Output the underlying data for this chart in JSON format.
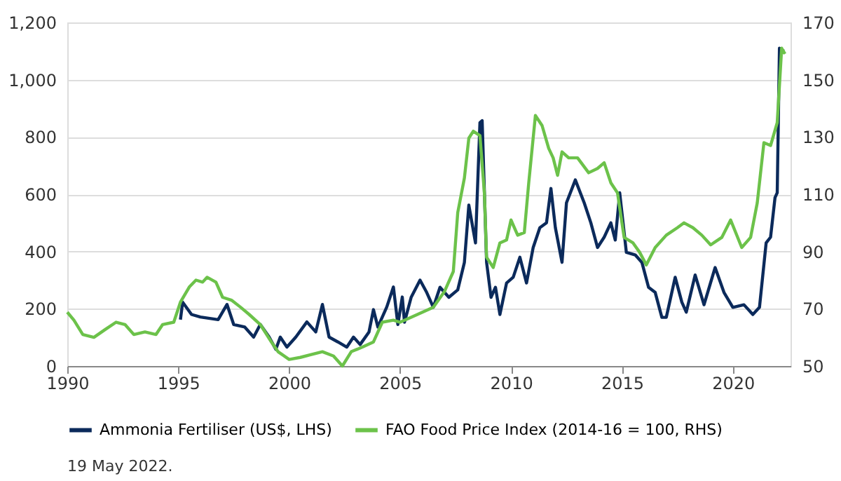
{
  "chart_data": {
    "type": "line",
    "annotations": [
      "19 May 2022."
    ],
    "xlim": [
      1990,
      2022.6
    ],
    "xticks": [
      1990,
      1995,
      2000,
      2005,
      2010,
      2015,
      2020
    ],
    "ylim": [
      0,
      1200
    ],
    "yticks": [
      0,
      200,
      400,
      600,
      800,
      {
        "value": 1000,
        "label": "1,000"
      },
      {
        "value": 1200,
        "label": "1,200"
      }
    ],
    "y2lim": [
      50,
      170
    ],
    "y2ticks": [
      50,
      70,
      90,
      110,
      130,
      150,
      170
    ],
    "grid": "y",
    "legend": "bottom",
    "line_style": "solid",
    "marker": "none",
    "series": [
      {
        "name": "Ammonia Fertiliser (US$, LHS)",
        "color": "#0b2a5b",
        "x": [
          1995.1,
          1995.2,
          1995.6,
          1996,
          1996.8,
          1997.2,
          1997.5,
          1998,
          1998.4,
          1998.7,
          1999.1,
          1999.4,
          1999.6,
          1999.9,
          2000.3,
          2000.8,
          2001.2,
          2001.5,
          2001.8,
          2002.2,
          2002.6,
          2002.9,
          2003.2,
          2003.6,
          2003.8,
          2004,
          2004.4,
          2004.7,
          2004.9,
          2005.1,
          2005.2,
          2005.5,
          2005.9,
          2006.2,
          2006.5,
          2006.8,
          2007.2,
          2007.6,
          2007.9,
          2008.1,
          2008.4,
          2008.6,
          2008.7,
          2008.9,
          2009.1,
          2009.3,
          2009.5,
          2009.8,
          2010.1,
          2010.4,
          2010.7,
          2011,
          2011.3,
          2011.6,
          2011.8,
          2012,
          2012.3,
          2012.5,
          2012.9,
          2013.3,
          2013.6,
          2013.9,
          2014.2,
          2014.5,
          2014.7,
          2014.9,
          2015.2,
          2015.6,
          2015.9,
          2016.2,
          2016.5,
          2016.8,
          2017,
          2017.4,
          2017.7,
          2017.9,
          2018.3,
          2018.7,
          2019.2,
          2019.6,
          2020,
          2020.5,
          2020.9,
          2021.2,
          2021.5,
          2021.7,
          2021.9,
          2022.0,
          2022.1,
          2022.3
        ],
        "values": [
          162,
          223,
          180,
          171,
          162,
          215,
          145,
          136,
          101,
          145,
          101,
          58,
          101,
          66,
          101,
          154,
          119,
          215,
          101,
          84,
          66,
          101,
          75,
          119,
          197,
          136,
          206,
          276,
          145,
          241,
          153,
          240,
          300,
          257,
          205,
          275,
          240,
          266,
          362,
          562,
          430,
          850,
          857,
          362,
          240,
          275,
          180,
          290,
          310,
          380,
          290,
          414,
          483,
          500,
          620,
          483,
          362,
          570,
          650,
          570,
          500,
          414,
          450,
          500,
          440,
          605,
          397,
          388,
          362,
          275,
          257,
          170,
          170,
          310,
          223,
          188,
          318,
          214,
          344,
          257,
          205,
          214,
          180,
          205,
          430,
          450,
          588,
          605,
          1110,
          1100
        ]
      },
      {
        "name": "FAO Food Price Index (2014-16 = 100, RHS)",
        "color": "#6cc24a",
        "axis": "y2",
        "x": [
          1990,
          1990.3,
          1990.7,
          1991.2,
          1991.7,
          1992.2,
          1992.6,
          1993,
          1993.5,
          1994,
          1994.3,
          1994.8,
          1995.1,
          1995.5,
          1995.8,
          1996.1,
          1996.3,
          1996.7,
          1997,
          1997.4,
          1997.8,
          1998.2,
          1998.7,
          1999.2,
          1999.5,
          2000,
          2000.5,
          2001,
          2001.5,
          2002,
          2002.4,
          2002.8,
          2003.3,
          2003.8,
          2004.2,
          2004.7,
          2005,
          2005.5,
          2006.5,
          2007,
          2007.4,
          2007.6,
          2007.9,
          2008.1,
          2008.3,
          2008.6,
          2008.8,
          2008.9,
          2009.2,
          2009.5,
          2009.8,
          2010,
          2010.3,
          2010.6,
          2010.8,
          2011.1,
          2011.4,
          2011.7,
          2011.9,
          2012.1,
          2012.3,
          2012.6,
          2013,
          2013.5,
          2013.9,
          2014.2,
          2014.5,
          2014.8,
          2015.1,
          2015.5,
          2015.8,
          2016.1,
          2016.5,
          2017,
          2017.5,
          2017.8,
          2018.2,
          2018.6,
          2019,
          2019.5,
          2019.9,
          2020.4,
          2020.8,
          2021.1,
          2021.4,
          2021.7,
          2022.0,
          2022.2,
          2022.35
        ],
        "values": [
          68.8,
          66,
          61,
          60,
          62.7,
          65.3,
          64.5,
          61,
          61.9,
          61,
          64.5,
          65.3,
          72.3,
          77.6,
          80,
          79.3,
          81,
          79.3,
          74,
          73,
          70.6,
          68,
          64.5,
          58.4,
          55,
          52.3,
          53,
          54,
          55,
          53.5,
          50,
          55,
          56.6,
          58.4,
          65.3,
          66,
          65.3,
          67,
          70.5,
          76,
          83,
          103.6,
          115.7,
          129.6,
          132,
          130.5,
          110.5,
          88,
          84.4,
          93,
          94,
          101,
          95.7,
          96.6,
          114,
          137.5,
          134,
          126,
          122.7,
          116.6,
          124.8,
          122.7,
          122.7,
          117.5,
          119,
          121,
          114,
          110.5,
          94.9,
          93,
          89.7,
          85.3,
          91.4,
          95.7,
          98.3,
          100,
          98.3,
          95.7,
          92.3,
          94.9,
          101,
          91.4,
          94.9,
          107,
          128,
          127,
          135,
          161,
          159
        ]
      }
    ]
  }
}
